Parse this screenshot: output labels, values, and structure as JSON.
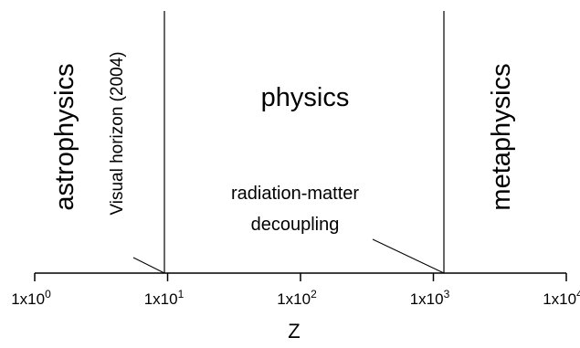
{
  "chart_data": {
    "type": "diagram",
    "x_axis": {
      "label": "Z",
      "scale": "log",
      "range": [
        1,
        10000
      ],
      "ticks": [
        {
          "value": 1,
          "mantissa": "1x10",
          "exponent": "0"
        },
        {
          "value": 10,
          "mantissa": "1x10",
          "exponent": "1"
        },
        {
          "value": 100,
          "mantissa": "1x10",
          "exponent": "2"
        },
        {
          "value": 1000,
          "mantissa": "1x10",
          "exponent": "3"
        },
        {
          "value": 10000,
          "mantissa": "1x10",
          "exponent": "4"
        }
      ]
    },
    "boundaries": [
      {
        "name": "visual-horizon",
        "z": 10,
        "label": "Visual horizon (2004)"
      },
      {
        "name": "radiation-matter-decoupling",
        "z": 1300,
        "label_lines": [
          "radiation-matter",
          "decoupling"
        ]
      }
    ],
    "regions": {
      "left": "astrophysics",
      "middle": "physics",
      "right": "metaphysics"
    }
  }
}
